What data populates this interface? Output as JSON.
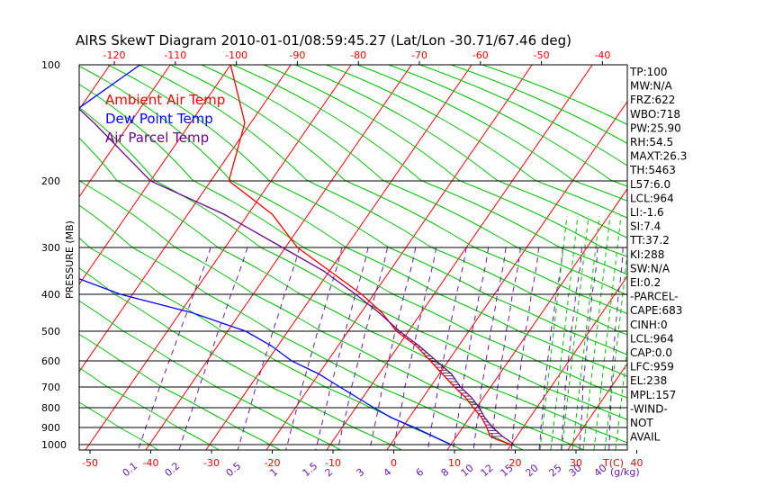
{
  "chart_data": {
    "type": "line",
    "title": "AIRS SkewT Diagram 2010-01-01/08:59:45.27 (Lat/Lon -30.71/67.46 deg)",
    "ylabel": "PRESSURE (MB)",
    "xlabel": "T(C)",
    "mixing_ratio_unit": "(g/kg)",
    "pressure_ticks": [
      100,
      200,
      300,
      400,
      500,
      600,
      700,
      800,
      900,
      1000
    ],
    "top_temp_ticks": [
      "-120",
      "-110",
      "-100",
      "-90",
      "-80",
      "-70",
      "-60",
      "-50",
      "-40"
    ],
    "bottom_temp_ticks": [
      "-50",
      "-40",
      "-30",
      "-20",
      "-10",
      "0",
      "10",
      "20",
      "30",
      "40"
    ],
    "mixing_ratio_ticks": [
      "0.1",
      "0.2",
      "0.5",
      "1",
      "1.5",
      "2",
      "3",
      "4",
      "6",
      "8",
      "10",
      "12",
      "15",
      "20",
      "25",
      "30",
      "40"
    ],
    "legend": [
      {
        "label": "Ambient Air Temp",
        "color": "#ff0000"
      },
      {
        "label": "Dew Point Temp",
        "color": "#0000ff"
      },
      {
        "label": "Air Parcel Temp",
        "color": "#6a0a8a"
      }
    ],
    "series": [
      {
        "name": "Ambient Air Temp",
        "color": "#ff0000",
        "points": [
          [
            100,
            -70
          ],
          [
            150,
            -61
          ],
          [
            200,
            -57
          ],
          [
            250,
            -46
          ],
          [
            300,
            -38
          ],
          [
            350,
            -30
          ],
          [
            400,
            -22
          ],
          [
            450,
            -16.5
          ],
          [
            500,
            -12
          ],
          [
            550,
            -7
          ],
          [
            600,
            -3
          ],
          [
            650,
            0.5
          ],
          [
            700,
            4
          ],
          [
            750,
            7
          ],
          [
            800,
            9.5
          ],
          [
            850,
            12
          ],
          [
            900,
            14
          ],
          [
            950,
            15.5
          ],
          [
            970,
            17
          ],
          [
            990,
            19
          ],
          [
            1000,
            20
          ]
        ]
      },
      {
        "name": "Dew Point Temp",
        "color": "#0000ff",
        "points": [
          [
            100,
            -85
          ],
          [
            150,
            -92
          ],
          [
            200,
            -97
          ],
          [
            250,
            -95
          ],
          [
            300,
            -90
          ],
          [
            350,
            -75
          ],
          [
            400,
            -62
          ],
          [
            450,
            -48
          ],
          [
            500,
            -37
          ],
          [
            550,
            -31
          ],
          [
            600,
            -26
          ],
          [
            650,
            -20
          ],
          [
            700,
            -15
          ],
          [
            750,
            -11
          ],
          [
            800,
            -7
          ],
          [
            850,
            -3
          ],
          [
            900,
            2
          ],
          [
            950,
            6
          ],
          [
            1000,
            10
          ]
        ]
      },
      {
        "name": "Air Parcel Temp",
        "color": "#6a0a8a",
        "points": [
          [
            100,
            -103
          ],
          [
            150,
            -86
          ],
          [
            200,
            -70
          ],
          [
            250,
            -54
          ],
          [
            300,
            -40.5
          ],
          [
            350,
            -31
          ],
          [
            400,
            -23
          ],
          [
            450,
            -17
          ],
          [
            500,
            -11.5
          ],
          [
            550,
            -6.5
          ],
          [
            600,
            -2
          ],
          [
            650,
            2
          ],
          [
            700,
            5
          ],
          [
            750,
            8
          ],
          [
            800,
            10.5
          ],
          [
            850,
            12.5
          ],
          [
            900,
            15
          ],
          [
            950,
            17.5
          ],
          [
            1000,
            20.5
          ]
        ]
      }
    ],
    "skew_stats": [
      "TP:100",
      "MW:N/A",
      "FRZ:622",
      "WBO:718",
      "PW:25.90",
      "RH:54.5",
      "MAXT:26.3",
      "TH:5463",
      "L57:6.0",
      "LCL:964",
      "LI:-1.6",
      "SI:7.4",
      "TT:37.2",
      "KI:288",
      "SW:N/A",
      "EI:0.2",
      "-PARCEL-",
      "CAPE:683",
      "CINH:0",
      "LCL:964",
      "CAP:0.0",
      "LFC:959",
      "EL:238",
      "MPL:157",
      "-WIND-",
      "NOT",
      "AVAIL"
    ],
    "grid": true
  }
}
